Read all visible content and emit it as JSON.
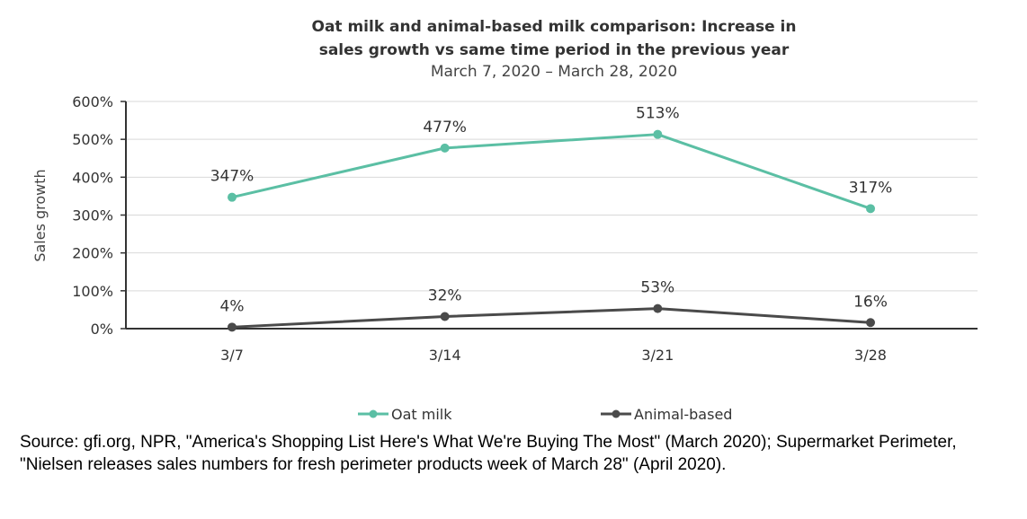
{
  "chart_data": {
    "type": "line",
    "title_lines": [
      "Oat milk and animal-based milk comparison: Increase in",
      "sales growth vs same time period in the previous year"
    ],
    "subtitle": "March 7, 2020 – March 28, 2020",
    "ylabel": "Sales growth",
    "xlabel": "",
    "categories": [
      "3/7",
      "3/14",
      "3/21",
      "3/28"
    ],
    "ylim": [
      0,
      600
    ],
    "yticks": [
      0,
      100,
      200,
      300,
      400,
      500,
      600
    ],
    "ytick_labels": [
      "0%",
      "100%",
      "200%",
      "300%",
      "400%",
      "500%",
      "600%"
    ],
    "grid": true,
    "legend_position": "bottom",
    "series": [
      {
        "name": "Oat milk",
        "color": "#5bbfa4",
        "values": [
          347,
          477,
          513,
          317
        ],
        "labels": [
          "347%",
          "477%",
          "513%",
          "317%"
        ]
      },
      {
        "name": "Animal-based",
        "color": "#4a4a4a",
        "values": [
          4,
          32,
          53,
          16
        ],
        "labels": [
          "4%",
          "32%",
          "53%",
          "16%"
        ]
      }
    ]
  },
  "source_text": "Source: gfi.org, NPR, \"America's Shopping List Here's What We're Buying The Most\" (March 2020); Supermarket Perimeter, \"Nielsen releases sales numbers for fresh perimeter products week of March 28\" (April 2020)."
}
